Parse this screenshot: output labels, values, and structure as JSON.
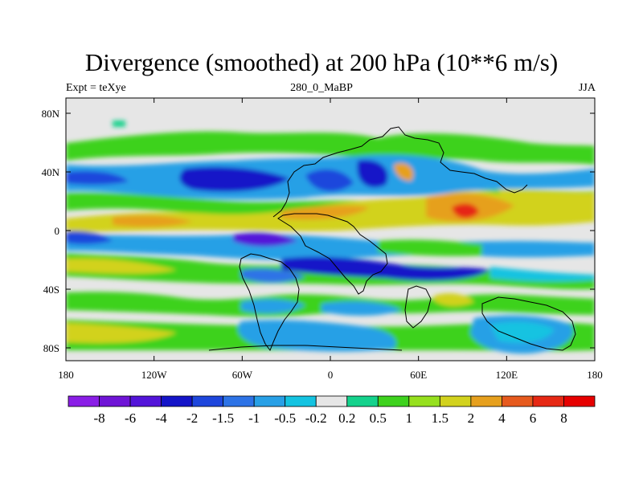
{
  "title": "Divergence (smoothed) at 200 hPa (10**6 m/s)",
  "subtitle_left": "Expt = teXye",
  "subtitle_center": "280_0_MaBP",
  "subtitle_right": "JJA",
  "axes": {
    "x_ticks": [
      "180",
      "120W",
      "60W",
      "0",
      "60E",
      "120E",
      "180"
    ],
    "y_ticks": [
      "80N",
      "40N",
      "0",
      "40S",
      "80S"
    ]
  },
  "colorbar": {
    "labels": [
      "-8",
      "-6",
      "-4",
      "-2",
      "-1.5",
      "-1",
      "-0.5",
      "-0.2",
      "0.2",
      "0.5",
      "1",
      "1.5",
      "2",
      "4",
      "6",
      "8"
    ],
    "colors": [
      "#8a1ee6",
      "#6f14d6",
      "#5314d9",
      "#1414c8",
      "#1e46dc",
      "#2d73e6",
      "#28a0e6",
      "#14c3e1",
      "#e6e6e6",
      "#14d28c",
      "#3ed21e",
      "#96e01e",
      "#d2d21e",
      "#e6a01e",
      "#e65a1e",
      "#e62814",
      "#e60000"
    ]
  },
  "colors": {
    "neutral": "#e6e6e6",
    "coastline": "#000000"
  }
}
